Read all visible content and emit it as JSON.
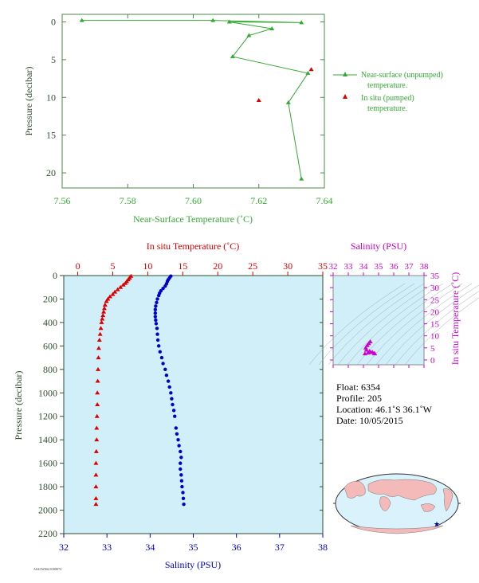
{
  "chart_data": [
    {
      "type": "line",
      "xlabel": "Near-Surface Temperature (˚C)",
      "ylabel": "Pressure (decibar)",
      "xlim": [
        7.56,
        7.64
      ],
      "ylim": [
        22,
        -1
      ],
      "x_ticks": [
        "7.56",
        "7.58",
        "7.60",
        "7.62",
        "7.64"
      ],
      "y_ticks": [
        "0",
        "5",
        "10",
        "15",
        "20"
      ],
      "color_unpumped": "#33aa33",
      "color_pumped": "#dd0000",
      "legend_position": "right",
      "series": [
        {
          "name": "Near-surface (unpumped) temperature.",
          "points": [
            [
              7.566,
              -0.2
            ],
            [
              7.606,
              -0.2
            ],
            [
              7.633,
              0.1
            ],
            [
              7.611,
              0.0
            ],
            [
              7.624,
              0.9
            ],
            [
              7.617,
              1.8
            ],
            [
              7.612,
              4.6
            ],
            [
              7.635,
              6.8
            ],
            [
              7.629,
              10.7
            ],
            [
              7.633,
              20.8
            ]
          ]
        },
        {
          "name": "In situ (pumped) temperature.",
          "points": [
            [
              7.636,
              6.3
            ],
            [
              7.62,
              10.4
            ]
          ]
        }
      ]
    },
    {
      "type": "scatter",
      "ylabel": "Pressure (decibar)",
      "top_axis_label": "In situ Temperature (˚C)",
      "bottom_axis_label": "Salinity (PSU)",
      "temp_lim": [
        -2,
        35
      ],
      "sal_lim": [
        32,
        38
      ],
      "pressure_lim": [
        0,
        2200
      ],
      "temp_ticks": [
        "0",
        "5",
        "10",
        "15",
        "20",
        "25",
        "30",
        "35"
      ],
      "sal_ticks": [
        "32",
        "33",
        "34",
        "35",
        "36",
        "37",
        "38"
      ],
      "pressure_ticks": [
        "0",
        "200",
        "400",
        "600",
        "800",
        "1000",
        "1200",
        "1400",
        "1600",
        "1800",
        "2000",
        "2200"
      ],
      "bg_color": "#d1eff8",
      "temp_color": "#dd0000",
      "sal_color": "#0000cc",
      "series": [
        {
          "name": "In situ Temperature (˚C)",
          "points": [
            [
              7.6,
              5
            ],
            [
              7.4,
              20
            ],
            [
              7.2,
              35
            ],
            [
              7.0,
              50
            ],
            [
              6.8,
              65
            ],
            [
              6.5,
              80
            ],
            [
              6.1,
              100
            ],
            [
              5.7,
              120
            ],
            [
              5.3,
              140
            ],
            [
              5.0,
              160
            ],
            [
              4.6,
              180
            ],
            [
              4.3,
              200
            ],
            [
              4.1,
              220
            ],
            [
              3.9,
              250
            ],
            [
              3.8,
              280
            ],
            [
              3.7,
              310
            ],
            [
              3.6,
              340
            ],
            [
              3.5,
              370
            ],
            [
              3.4,
              400
            ],
            [
              3.3,
              450
            ],
            [
              3.2,
              500
            ],
            [
              3.1,
              550
            ],
            [
              3.0,
              620
            ],
            [
              2.95,
              700
            ],
            [
              2.9,
              800
            ],
            [
              2.85,
              900
            ],
            [
              2.8,
              1000
            ],
            [
              2.8,
              1100
            ],
            [
              2.75,
              1200
            ],
            [
              2.7,
              1300
            ],
            [
              2.7,
              1400
            ],
            [
              2.65,
              1500
            ],
            [
              2.6,
              1600
            ],
            [
              2.6,
              1700
            ],
            [
              2.6,
              1800
            ],
            [
              2.6,
              1900
            ],
            [
              2.6,
              1950
            ]
          ]
        },
        {
          "name": "Salinity (PSU)",
          "points": [
            [
              34.48,
              5
            ],
            [
              34.45,
              20
            ],
            [
              34.42,
              35
            ],
            [
              34.4,
              50
            ],
            [
              34.38,
              70
            ],
            [
              34.35,
              90
            ],
            [
              34.3,
              110
            ],
            [
              34.25,
              130
            ],
            [
              34.22,
              150
            ],
            [
              34.2,
              170
            ],
            [
              34.17,
              200
            ],
            [
              34.15,
              230
            ],
            [
              34.13,
              260
            ],
            [
              34.12,
              290
            ],
            [
              34.12,
              320
            ],
            [
              34.12,
              350
            ],
            [
              34.13,
              380
            ],
            [
              34.14,
              410
            ],
            [
              34.16,
              450
            ],
            [
              34.17,
              500
            ],
            [
              34.18,
              550
            ],
            [
              34.2,
              600
            ],
            [
              34.23,
              650
            ],
            [
              34.27,
              700
            ],
            [
              34.3,
              750
            ],
            [
              34.35,
              800
            ],
            [
              34.38,
              850
            ],
            [
              34.42,
              900
            ],
            [
              34.45,
              950
            ],
            [
              34.48,
              1000
            ],
            [
              34.5,
              1050
            ],
            [
              34.52,
              1100
            ],
            [
              34.55,
              1150
            ],
            [
              34.57,
              1200
            ],
            [
              34.6,
              1300
            ],
            [
              34.62,
              1350
            ],
            [
              34.65,
              1400
            ],
            [
              34.67,
              1450
            ],
            [
              34.7,
              1500
            ],
            [
              34.72,
              1550
            ],
            [
              34.7,
              1600
            ],
            [
              34.7,
              1650
            ],
            [
              34.72,
              1700
            ],
            [
              34.73,
              1750
            ],
            [
              34.74,
              1800
            ],
            [
              34.76,
              1850
            ],
            [
              34.77,
              1900
            ],
            [
              34.78,
              1950
            ]
          ]
        }
      ]
    },
    {
      "type": "scatter",
      "xlabel": "Salinity (PSU)",
      "ylabel": "In situ Temperature (˚C)",
      "xlim": [
        32,
        38
      ],
      "ylim": [
        -2,
        35
      ],
      "x_ticks": [
        "32",
        "33",
        "34",
        "35",
        "36",
        "37",
        "38"
      ],
      "y_ticks": [
        "0",
        "5",
        "10",
        "15",
        "20",
        "25",
        "30",
        "35"
      ],
      "color": "#cc00cc",
      "points": [
        [
          34.1,
          2.6
        ],
        [
          34.3,
          2.9
        ],
        [
          34.5,
          3.1
        ],
        [
          34.72,
          2.7
        ],
        [
          34.75,
          2.6
        ],
        [
          34.6,
          3.2
        ],
        [
          34.4,
          3.6
        ],
        [
          34.2,
          4.1
        ],
        [
          34.15,
          5.0
        ],
        [
          34.25,
          6.0
        ],
        [
          34.35,
          6.8
        ],
        [
          34.45,
          7.6
        ]
      ]
    }
  ],
  "info": {
    "float": "Float:  6354",
    "profile": "Profile:  205",
    "location": "Location:  46.1˚S  36.1˚W",
    "date": "Date:  10/05/2015"
  },
  "footer_code": "AS4/2WS64 EIS8074"
}
